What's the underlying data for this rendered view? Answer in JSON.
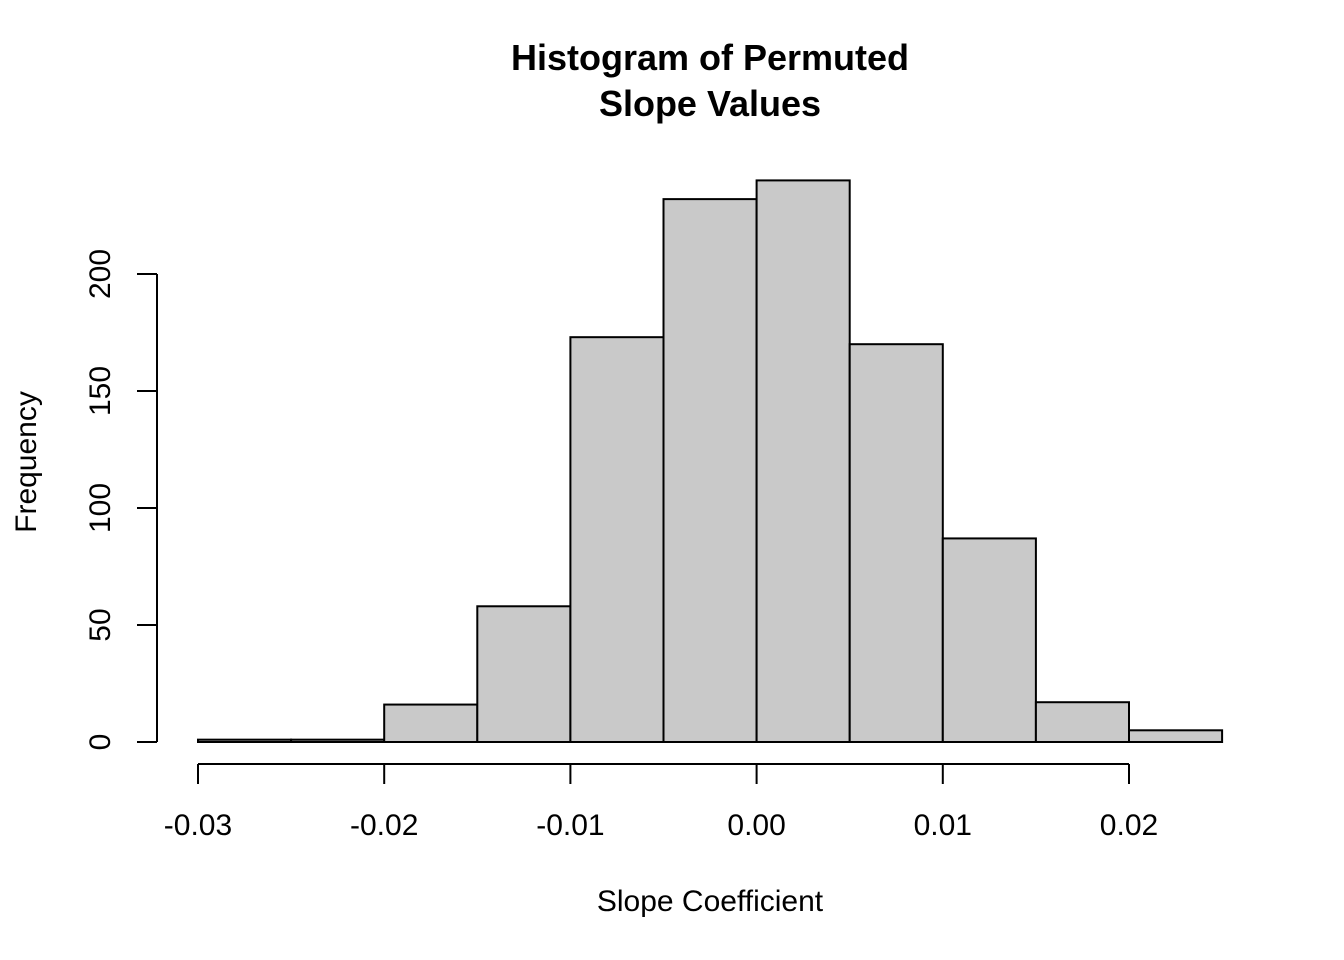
{
  "chart_data": {
    "type": "bar",
    "title_lines": [
      "Histogram of Permuted",
      "Slope Values"
    ],
    "xlabel": "Slope Coefficient",
    "ylabel": "Frequency",
    "bins": [
      {
        "from": -0.03,
        "to": -0.025,
        "count": 1
      },
      {
        "from": -0.025,
        "to": -0.02,
        "count": 1
      },
      {
        "from": -0.02,
        "to": -0.015,
        "count": 16
      },
      {
        "from": -0.015,
        "to": -0.01,
        "count": 58
      },
      {
        "from": -0.01,
        "to": -0.005,
        "count": 173
      },
      {
        "from": -0.005,
        "to": 0.0,
        "count": 232
      },
      {
        "from": 0.0,
        "to": 0.005,
        "count": 240
      },
      {
        "from": 0.005,
        "to": 0.01,
        "count": 170
      },
      {
        "from": 0.01,
        "to": 0.015,
        "count": 87
      },
      {
        "from": 0.015,
        "to": 0.02,
        "count": 17
      },
      {
        "from": 0.02,
        "to": 0.025,
        "count": 5
      }
    ],
    "x_ticks": [
      -0.03,
      -0.02,
      -0.01,
      0.0,
      0.01,
      0.02
    ],
    "x_tick_labels": [
      "-0.03",
      "-0.02",
      "-0.01",
      "0.00",
      "0.01",
      "0.02"
    ],
    "y_ticks": [
      0,
      50,
      100,
      150,
      200
    ],
    "y_tick_labels": [
      "0",
      "50",
      "100",
      "150",
      "200"
    ],
    "grid": false,
    "legend": "none",
    "bar_color": "#c9c9c9",
    "edge_color": "#000000"
  }
}
